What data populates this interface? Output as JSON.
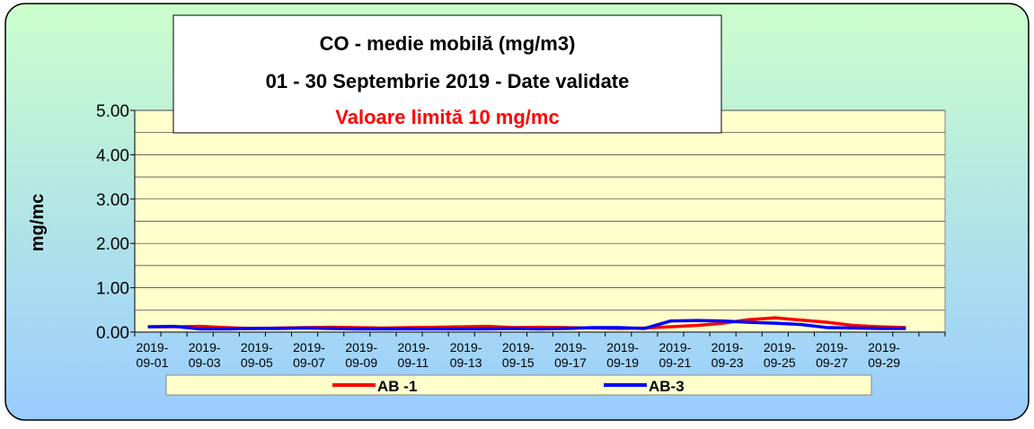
{
  "chart_data": {
    "type": "line",
    "title": [
      "CO - medie mobilă (mg/m3)",
      "01 -  30 Septembrie 2019 - Date validate",
      "Valoare limită 10 mg/mc"
    ],
    "ylabel": "mg/mc",
    "categories": [
      "2019-09-01",
      null,
      "2019-09-03",
      null,
      "2019-09-05",
      null,
      "2019-09-07",
      null,
      "2019-09-09",
      null,
      "2019-09-11",
      null,
      "2019-09-13",
      null,
      "2019-09-15",
      null,
      "2019-09-17",
      null,
      "2019-09-19",
      null,
      "2019-09-21",
      null,
      "2019-09-23",
      null,
      "2019-09-25",
      null,
      "2019-09-27",
      null,
      "2019-09-29",
      null,
      null
    ],
    "series": [
      {
        "name": "AB -1",
        "color": "#ff0000",
        "values": [
          0.12,
          0.12,
          0.13,
          0.1,
          0.08,
          0.09,
          0.1,
          0.11,
          0.1,
          0.09,
          0.1,
          0.11,
          0.12,
          0.13,
          0.1,
          0.11,
          0.1,
          0.09,
          0.08,
          0.09,
          0.12,
          0.15,
          0.2,
          0.28,
          0.32,
          0.27,
          0.22,
          0.15,
          0.12,
          0.1,
          null
        ]
      },
      {
        "name": "AB-3",
        "color": "#0000ff",
        "values": [
          0.12,
          0.13,
          0.07,
          0.07,
          0.08,
          0.08,
          0.09,
          0.08,
          0.07,
          0.07,
          0.07,
          0.07,
          0.07,
          0.07,
          0.08,
          0.07,
          0.08,
          0.1,
          0.1,
          0.08,
          0.25,
          0.26,
          0.25,
          0.22,
          0.2,
          0.17,
          0.1,
          0.09,
          0.08,
          0.08,
          null
        ]
      }
    ],
    "ylim": [
      0,
      5
    ],
    "yticks": [
      {
        "value": 0,
        "label": "0.00"
      },
      {
        "value": 1,
        "label": "1.00"
      },
      {
        "value": 2,
        "label": "2.00"
      },
      {
        "value": 3,
        "label": "3.00"
      },
      {
        "value": 4,
        "label": "4.00"
      },
      {
        "value": 5,
        "label": "5.00"
      }
    ],
    "minor_yticks": [
      0.5,
      1.5,
      2.5,
      3.5,
      4.5
    ],
    "grid": true
  }
}
